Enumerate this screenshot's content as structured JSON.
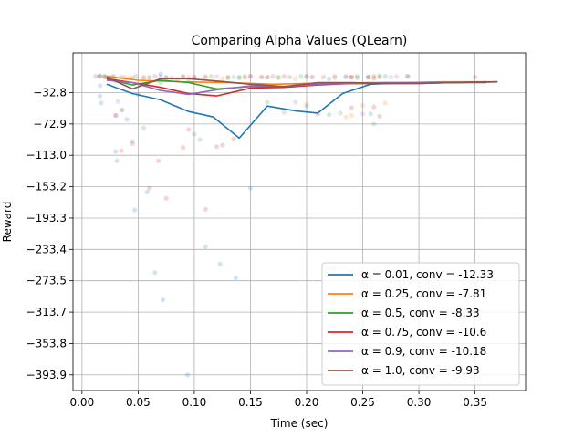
{
  "chart_data": {
    "type": "line",
    "title": "Comparing Alpha Values (QLearn)",
    "xlabel": "Time (sec)",
    "ylabel": "Reward",
    "xlim": [
      -0.008,
      0.395
    ],
    "ylim": [
      -414,
      18
    ],
    "x_ticks": [
      0.0,
      0.05,
      0.1,
      0.15,
      0.2,
      0.25,
      0.3,
      0.35
    ],
    "x_tick_labels": [
      "0.00",
      "0.05",
      "0.10",
      "0.15",
      "0.20",
      "0.25",
      "0.30",
      "0.35"
    ],
    "y_ticks": [
      -32.8,
      -72.9,
      -113.0,
      -153.2,
      -193.3,
      -233.4,
      -273.5,
      -313.7,
      -353.8,
      -393.9
    ],
    "y_tick_labels": [
      "−32.8",
      "−72.9",
      "−113.0",
      "−153.2",
      "−193.3",
      "−233.4",
      "−273.5",
      "−313.7",
      "−353.8",
      "−393.9"
    ],
    "grid": true,
    "legend_position": "lower-right",
    "series": [
      {
        "name": "α = 0.01, conv = -12.33",
        "color": "#1f77b4",
        "x": [
          0.022,
          0.045,
          0.07,
          0.095,
          0.117,
          0.14,
          0.165,
          0.19,
          0.21,
          0.232,
          0.257,
          0.29,
          0.325,
          0.36
        ],
        "y": [
          -22,
          -34,
          -42,
          -57,
          -64,
          -91,
          -50,
          -56,
          -59,
          -34,
          -22,
          -20,
          -20,
          -20
        ],
        "points": [
          [
            0.016,
            -11
          ],
          [
            0.016,
            -24
          ],
          [
            0.016,
            -37
          ],
          [
            0.017,
            -46
          ],
          [
            0.03,
            -108
          ],
          [
            0.031,
            -120
          ],
          [
            0.036,
            -55
          ],
          [
            0.04,
            -67
          ],
          [
            0.047,
            -183
          ],
          [
            0.05,
            -35
          ],
          [
            0.058,
            -160
          ],
          [
            0.065,
            -263
          ],
          [
            0.07,
            -9
          ],
          [
            0.072,
            -298
          ],
          [
            0.094,
            -394
          ],
          [
            0.11,
            -230
          ],
          [
            0.123,
            -252
          ],
          [
            0.137,
            -270
          ],
          [
            0.15,
            -155
          ],
          [
            0.2,
            -50
          ],
          [
            0.22,
            -15
          ],
          [
            0.257,
            -60
          ],
          [
            0.27,
            -12
          ]
        ]
      },
      {
        "name": "α = 0.25, conv = -7.81",
        "color": "#ff7f0e",
        "x": [
          0.022,
          0.05,
          0.09,
          0.13,
          0.17,
          0.2,
          0.23,
          0.255,
          0.29,
          0.32,
          0.35,
          0.37
        ],
        "y": [
          -12,
          -17,
          -19,
          -20,
          -22,
          -21,
          -21,
          -20,
          -20,
          -19,
          -19,
          -19
        ],
        "points": [
          [
            0.02,
            -12
          ],
          [
            0.028,
            -13
          ],
          [
            0.035,
            -55
          ],
          [
            0.042,
            -14
          ],
          [
            0.055,
            -15
          ],
          [
            0.06,
            -14
          ],
          [
            0.085,
            -15
          ],
          [
            0.095,
            -13
          ],
          [
            0.11,
            -14
          ],
          [
            0.125,
            -15
          ],
          [
            0.145,
            -14
          ],
          [
            0.16,
            -13
          ],
          [
            0.175,
            -14
          ],
          [
            0.19,
            -15
          ],
          [
            0.205,
            -13
          ],
          [
            0.225,
            -14
          ],
          [
            0.24,
            -13
          ],
          [
            0.26,
            -14
          ],
          [
            0.2,
            -47
          ],
          [
            0.24,
            -62
          ],
          [
            0.235,
            -64
          ],
          [
            0.25,
            -49
          ],
          [
            0.27,
            -46
          ],
          [
            0.26,
            -15
          ]
        ]
      },
      {
        "name": "α = 0.5, conv = -8.33",
        "color": "#2ca02c",
        "x": [
          0.022,
          0.045,
          0.07,
          0.095,
          0.12,
          0.15,
          0.18,
          0.21,
          0.24,
          0.27,
          0.3,
          0.33,
          0.36
        ],
        "y": [
          -15,
          -23,
          -17,
          -20,
          -28,
          -25,
          -25,
          -22,
          -21,
          -21,
          -20,
          -20,
          -19
        ],
        "points": [
          [
            0.02,
            -12
          ],
          [
            0.03,
            -18
          ],
          [
            0.045,
            -14
          ],
          [
            0.055,
            -78
          ],
          [
            0.07,
            -20
          ],
          [
            0.075,
            -14
          ],
          [
            0.095,
            -16
          ],
          [
            0.1,
            -86
          ],
          [
            0.105,
            -93
          ],
          [
            0.115,
            -12
          ],
          [
            0.13,
            -14
          ],
          [
            0.14,
            -13
          ],
          [
            0.165,
            -45
          ],
          [
            0.175,
            -13
          ],
          [
            0.195,
            -12
          ],
          [
            0.22,
            -61
          ],
          [
            0.23,
            -59
          ],
          [
            0.245,
            -14
          ],
          [
            0.255,
            -13
          ],
          [
            0.265,
            -11
          ],
          [
            0.29,
            -12
          ],
          [
            0.26,
            -73
          ],
          [
            0.14,
            -14
          ],
          [
            0.09,
            -13
          ]
        ]
      },
      {
        "name": "α = 0.75, conv = -10.6",
        "color": "#d62728",
        "x": [
          0.022,
          0.045,
          0.07,
          0.095,
          0.12,
          0.15,
          0.18,
          0.21,
          0.24,
          0.27,
          0.3,
          0.33,
          0.37
        ],
        "y": [
          -15,
          -20,
          -26,
          -34,
          -37,
          -27,
          -26,
          -23,
          -21,
          -21,
          -21,
          -20,
          -19
        ],
        "points": [
          [
            0.016,
            -12
          ],
          [
            0.025,
            -13
          ],
          [
            0.03,
            -62
          ],
          [
            0.035,
            -107
          ],
          [
            0.045,
            -98
          ],
          [
            0.06,
            -155
          ],
          [
            0.068,
            -120
          ],
          [
            0.075,
            -168
          ],
          [
            0.09,
            -103
          ],
          [
            0.095,
            -80
          ],
          [
            0.11,
            -182
          ],
          [
            0.12,
            -102
          ],
          [
            0.125,
            -100
          ],
          [
            0.135,
            -92
          ],
          [
            0.15,
            -12
          ],
          [
            0.165,
            -13
          ],
          [
            0.18,
            -12
          ],
          [
            0.21,
            -60
          ],
          [
            0.24,
            -52
          ],
          [
            0.24,
            -13
          ],
          [
            0.26,
            -51
          ],
          [
            0.265,
            -63
          ],
          [
            0.29,
            -12
          ],
          [
            0.35,
            -13
          ]
        ]
      },
      {
        "name": "α = 0.9, conv = -10.18",
        "color": "#9467bd",
        "x": [
          0.022,
          0.045,
          0.07,
          0.095,
          0.12,
          0.15,
          0.18,
          0.21,
          0.24,
          0.27,
          0.3,
          0.33,
          0.36
        ],
        "y": [
          -17,
          -20,
          -30,
          -35,
          -29,
          -24,
          -25,
          -22,
          -21,
          -20,
          -20,
          -20,
          -19
        ],
        "points": [
          [
            0.015,
            -12
          ],
          [
            0.022,
            -13
          ],
          [
            0.03,
            -62
          ],
          [
            0.032,
            -44
          ],
          [
            0.038,
            -13
          ],
          [
            0.045,
            -95
          ],
          [
            0.06,
            -13
          ],
          [
            0.07,
            -12
          ],
          [
            0.08,
            -14
          ],
          [
            0.1,
            -13
          ],
          [
            0.12,
            -12
          ],
          [
            0.135,
            -13
          ],
          [
            0.15,
            -12
          ],
          [
            0.165,
            -13
          ],
          [
            0.18,
            -58
          ],
          [
            0.19,
            -45
          ],
          [
            0.205,
            -13
          ],
          [
            0.235,
            -12
          ],
          [
            0.25,
            -60
          ],
          [
            0.255,
            -13
          ],
          [
            0.275,
            -13
          ],
          [
            0.28,
            -12
          ],
          [
            0.24,
            -13
          ],
          [
            0.2,
            -12
          ]
        ]
      },
      {
        "name": "α = 1.0, conv = -9.93",
        "color": "#8c564b",
        "x": [
          0.022,
          0.045,
          0.07,
          0.095,
          0.12,
          0.15,
          0.18,
          0.21,
          0.24,
          0.27,
          0.3,
          0.33,
          0.37
        ],
        "y": [
          -13,
          -28,
          -15,
          -15,
          -18,
          -22,
          -25,
          -20,
          -20,
          -21,
          -21,
          -20,
          -19
        ],
        "points": [
          [
            0.012,
            -12
          ],
          [
            0.02,
            -13
          ],
          [
            0.028,
            -12
          ],
          [
            0.035,
            -13
          ],
          [
            0.048,
            -12
          ],
          [
            0.055,
            -13
          ],
          [
            0.065,
            -12
          ],
          [
            0.075,
            -13
          ],
          [
            0.09,
            -12
          ],
          [
            0.1,
            -13
          ],
          [
            0.11,
            -12
          ],
          [
            0.13,
            -13
          ],
          [
            0.145,
            -12
          ],
          [
            0.16,
            -13
          ],
          [
            0.17,
            -12
          ],
          [
            0.185,
            -13
          ],
          [
            0.2,
            -12
          ],
          [
            0.215,
            -13
          ],
          [
            0.225,
            -12
          ],
          [
            0.235,
            -13
          ],
          [
            0.245,
            -12
          ],
          [
            0.255,
            -13
          ],
          [
            0.26,
            -12
          ],
          [
            0.265,
            -13
          ]
        ]
      }
    ]
  }
}
